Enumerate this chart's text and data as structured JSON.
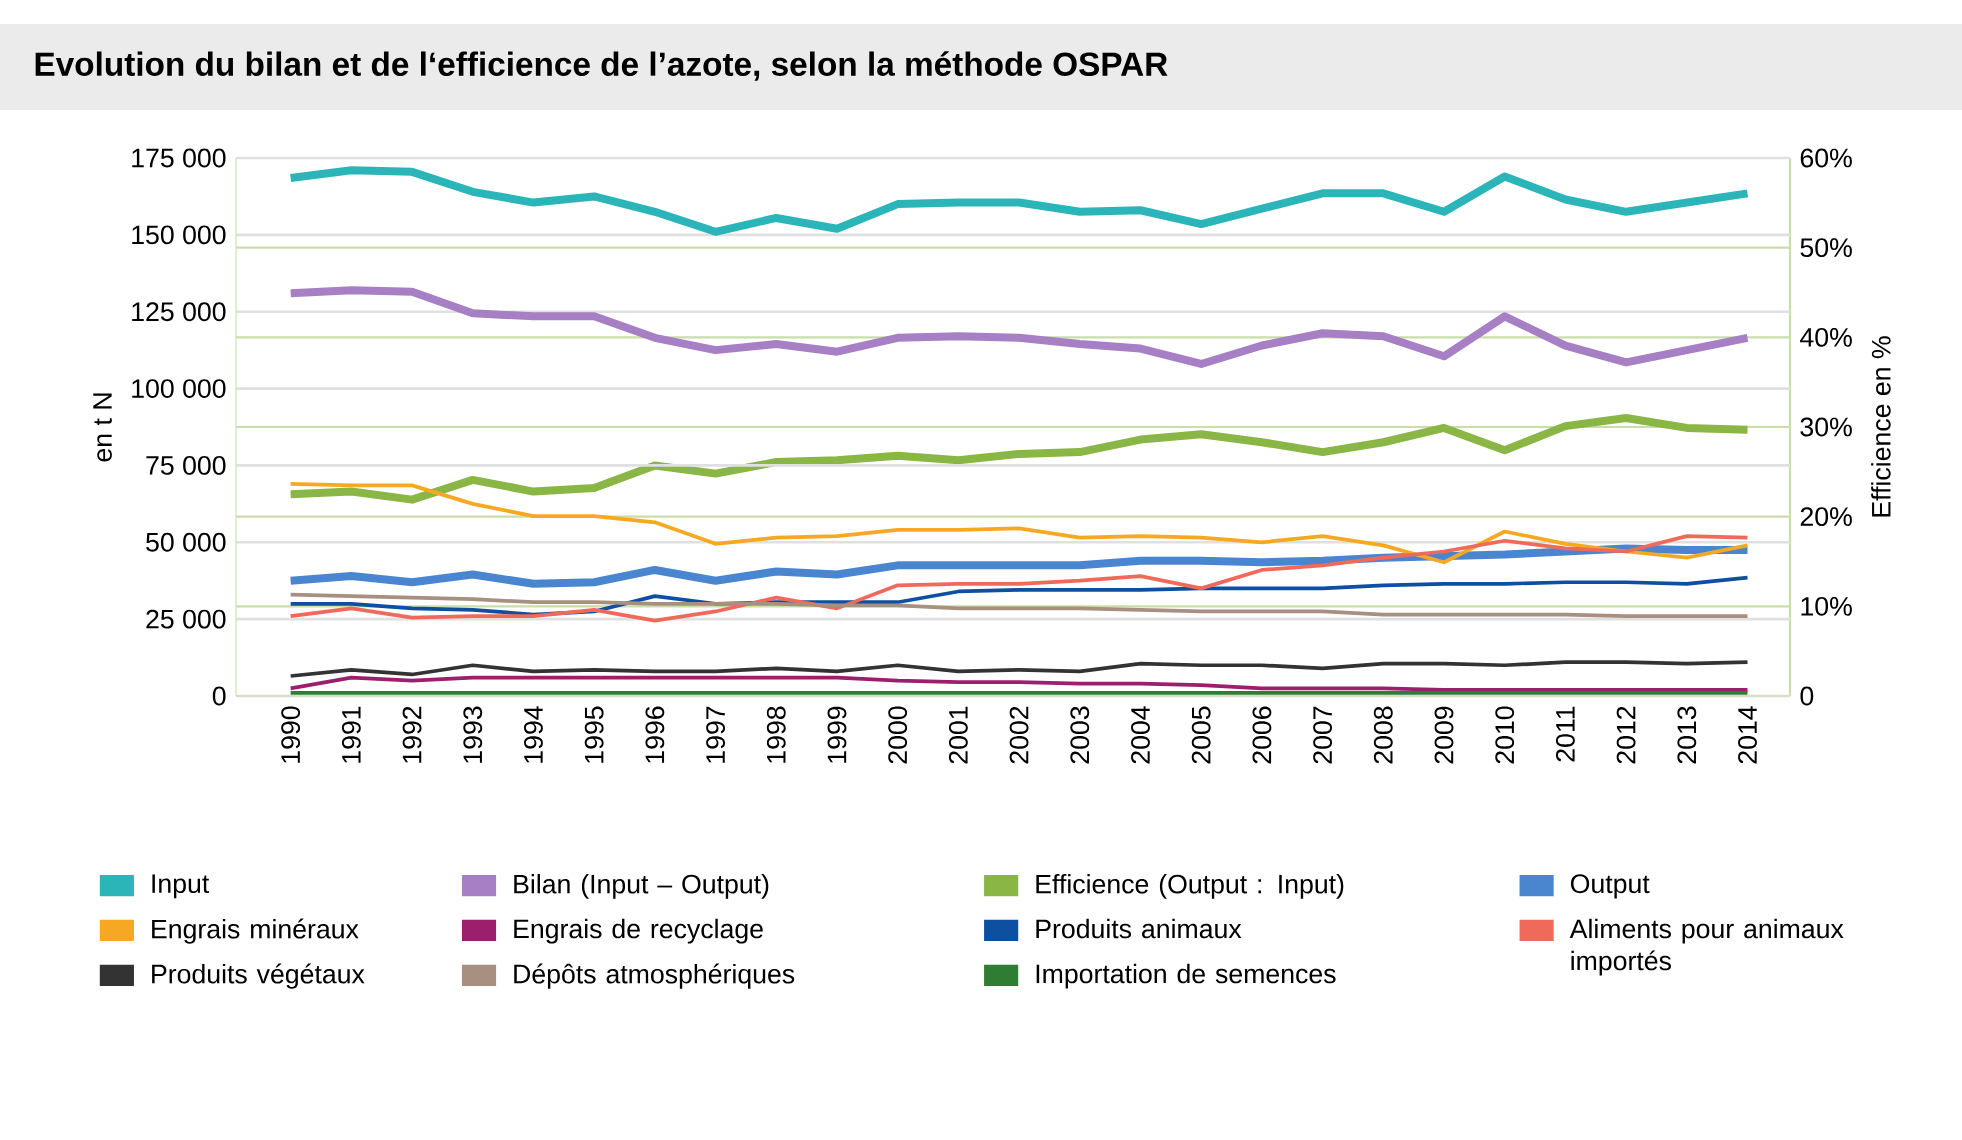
{
  "chart_data": {
    "type": "line",
    "title": "Evolution du bilan et de l‘efficience de l’azote, selon la méthode OSPAR",
    "categories": [
      "1990",
      "1991",
      "1992",
      "1993",
      "1994",
      "1995",
      "1996",
      "1997",
      "1998",
      "1999",
      "2000",
      "2001",
      "2002",
      "2003",
      "2004",
      "2005",
      "2006",
      "2007",
      "2008",
      "2009",
      "2010",
      "2011",
      "2012",
      "2013",
      "2014"
    ],
    "ylabel": "en t N",
    "y2label": "Efficience en %",
    "ylim": [
      0,
      175000
    ],
    "yticks": [
      {
        "value": 0,
        "label": "0"
      },
      {
        "value": 25000,
        "label": "25 000"
      },
      {
        "value": 50000,
        "label": "50 000"
      },
      {
        "value": 75000,
        "label": "75 000"
      },
      {
        "value": 100000,
        "label": "100 000"
      },
      {
        "value": 125000,
        "label": "125 000"
      },
      {
        "value": 150000,
        "label": "150 000"
      },
      {
        "value": 175000,
        "label": "175 000"
      }
    ],
    "y2lim": [
      0,
      60
    ],
    "y2ticks": [
      {
        "value": 0,
        "label": "0"
      },
      {
        "value": 10,
        "label": "10%"
      },
      {
        "value": 20,
        "label": "20%"
      },
      {
        "value": 30,
        "label": "30%"
      },
      {
        "value": 40,
        "label": "40%"
      },
      {
        "value": 50,
        "label": "50%"
      },
      {
        "value": 60,
        "label": "60%"
      }
    ],
    "grid": "y",
    "legend": "bottom",
    "series": [
      {
        "name": "Input",
        "color": "#2bb5b8",
        "values": [
          168500,
          171000,
          170500,
          164000,
          160500,
          162500,
          157500,
          151000,
          155500,
          152000,
          160000,
          160500,
          160500,
          157500,
          158000,
          153500,
          158500,
          163500,
          163500,
          157500,
          169000,
          161500,
          157500,
          160500,
          163500
        ]
      },
      {
        "name": "Bilan (Input – Output)",
        "color": "#a67fc4",
        "values": [
          131000,
          132000,
          131500,
          124500,
          123500,
          123500,
          116500,
          112500,
          114500,
          112000,
          116500,
          117000,
          116500,
          114500,
          113000,
          108000,
          114000,
          118000,
          117000,
          110500,
          123500,
          114000,
          108500,
          112500,
          116500
        ]
      },
      {
        "name": "Efficience (Output : Input)",
        "color": "#8ab645",
        "axis": "y2",
        "values": [
          22.5,
          22.8,
          21.9,
          24.1,
          22.8,
          23.2,
          25.7,
          24.8,
          26.1,
          26.3,
          26.8,
          26.3,
          27.0,
          27.2,
          28.6,
          29.2,
          28.3,
          27.2,
          28.3,
          29.9,
          27.4,
          30.1,
          31.0,
          29.9,
          29.7
        ]
      },
      {
        "name": "Output",
        "color": "#4a86cf",
        "values": [
          37500,
          39000,
          37000,
          39500,
          36500,
          37000,
          41000,
          37500,
          40500,
          39500,
          42500,
          42500,
          42500,
          42500,
          44000,
          44000,
          43500,
          44000,
          45000,
          45500,
          46000,
          47000,
          48000,
          47500,
          47500
        ]
      },
      {
        "name": "Engrais minéraux",
        "color": "#f7a823",
        "values": [
          69000,
          68500,
          68500,
          62500,
          58500,
          58500,
          56500,
          49500,
          51500,
          52000,
          54000,
          54000,
          54500,
          51500,
          52000,
          51500,
          50000,
          52000,
          49000,
          43500,
          53500,
          49500,
          47000,
          45000,
          49000
        ]
      },
      {
        "name": "Engrais de recyclage",
        "color": "#9c1f6e",
        "values": [
          2500,
          6000,
          5000,
          6000,
          6000,
          6000,
          6000,
          6000,
          6000,
          6000,
          5000,
          4500,
          4500,
          4000,
          4000,
          3500,
          2500,
          2500,
          2500,
          2000,
          2000,
          2000,
          2000,
          2000,
          2000
        ]
      },
      {
        "name": "Produits animaux",
        "color": "#0e4fa1",
        "values": [
          30000,
          30000,
          28500,
          28000,
          26500,
          27500,
          32500,
          30000,
          30500,
          30500,
          30500,
          34000,
          34500,
          34500,
          34500,
          35000,
          35000,
          35000,
          36000,
          36500,
          36500,
          37000,
          37000,
          36500,
          38500
        ]
      },
      {
        "name": "Aliments pour animaux importés",
        "color": "#ef6a5a",
        "values": [
          26000,
          28500,
          25500,
          26000,
          26000,
          28000,
          24500,
          27500,
          32000,
          28500,
          36000,
          36500,
          36500,
          37500,
          39000,
          35000,
          41000,
          42500,
          45000,
          47000,
          50500,
          48000,
          47000,
          52000,
          51500
        ]
      },
      {
        "name": "Produits végétaux",
        "color": "#333333",
        "values": [
          6500,
          8500,
          7000,
          10000,
          8000,
          8500,
          8000,
          8000,
          9000,
          8000,
          10000,
          8000,
          8500,
          8000,
          10500,
          10000,
          10000,
          9000,
          10500,
          10500,
          10000,
          11000,
          11000,
          10500,
          11000
        ]
      },
      {
        "name": "Dépôts atmosphériques",
        "color": "#a89080",
        "values": [
          33000,
          32500,
          32000,
          31500,
          30500,
          30500,
          30000,
          30000,
          30000,
          29500,
          29500,
          28500,
          28500,
          28500,
          28000,
          27500,
          27500,
          27500,
          26500,
          26500,
          26500,
          26500,
          26000,
          26000,
          26000
        ]
      },
      {
        "name": "Importation de semences",
        "color": "#2e7d32",
        "values": [
          1000,
          1000,
          1000,
          1000,
          1000,
          1000,
          1000,
          1000,
          1000,
          1000,
          1000,
          1000,
          1000,
          1000,
          1000,
          1000,
          1000,
          1000,
          1000,
          1000,
          1000,
          1000,
          1000,
          1000,
          1000
        ]
      }
    ]
  }
}
